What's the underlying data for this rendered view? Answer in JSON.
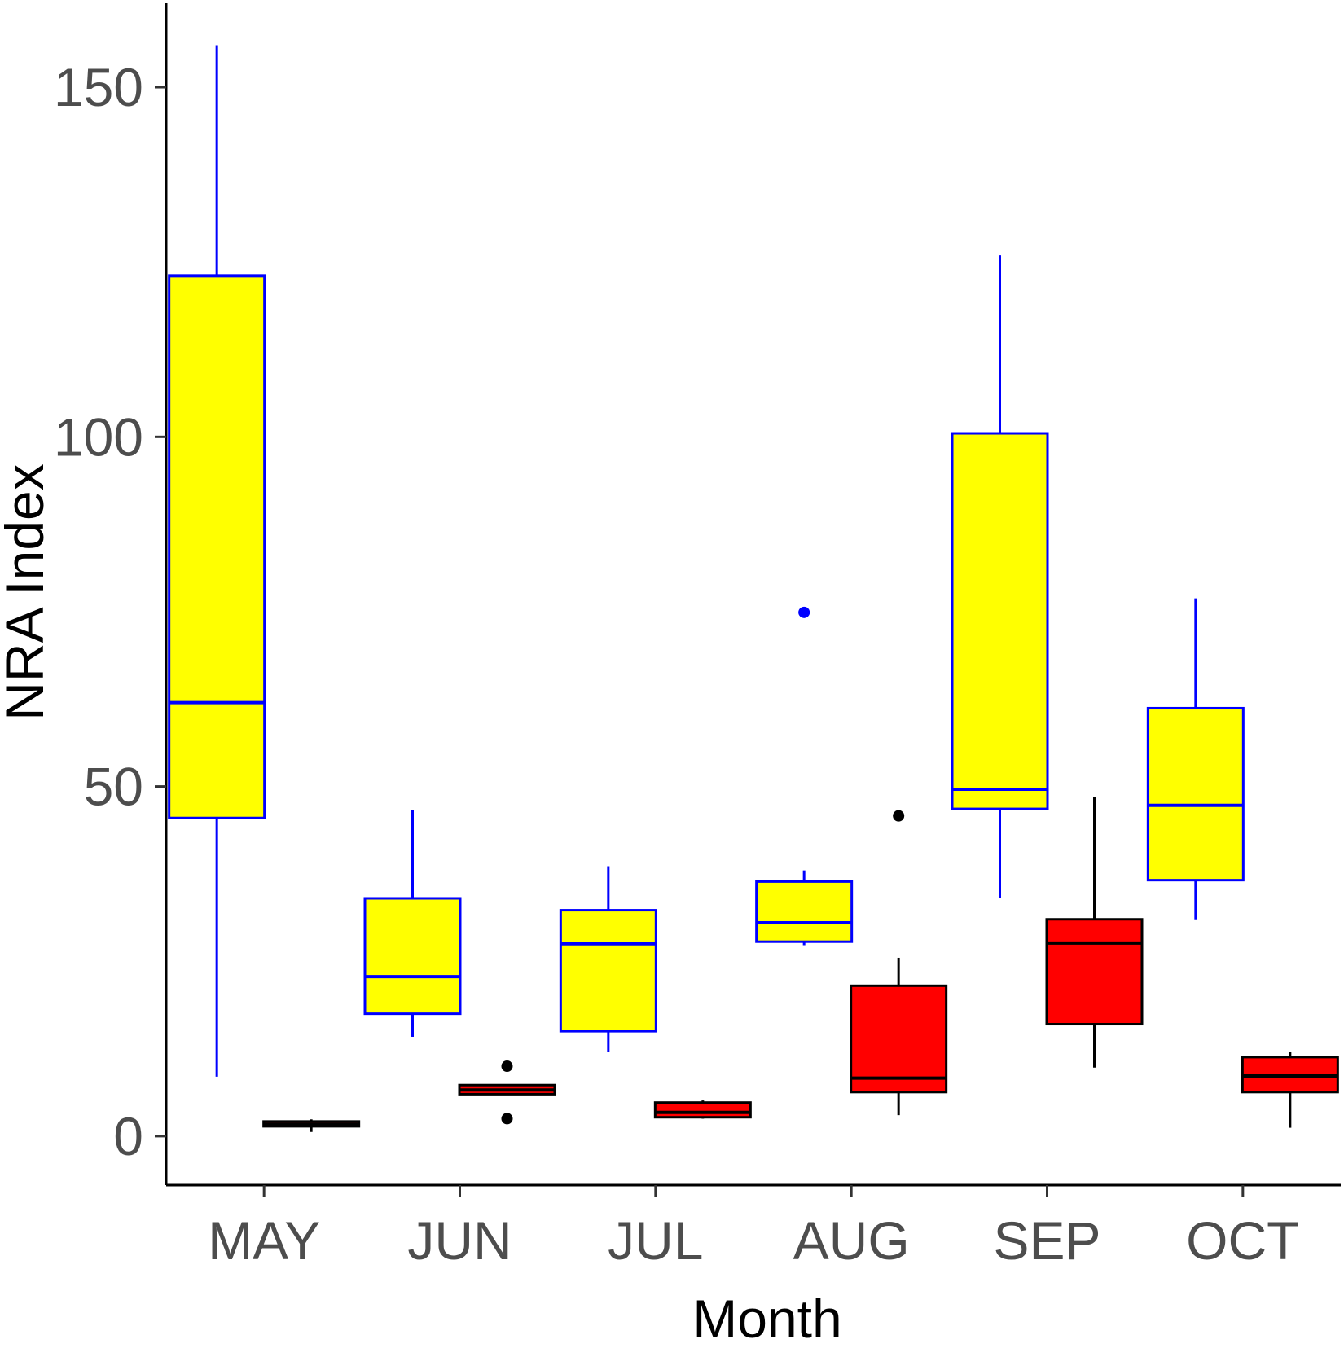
{
  "chart_data": {
    "type": "boxplot",
    "xlabel": "Month",
    "ylabel": "NRA Index",
    "categories": [
      "MAY",
      "JUN",
      "JUL",
      "AUG",
      "SEP",
      "OCT"
    ],
    "yticks": [
      0,
      50,
      100,
      150
    ],
    "ylim": [
      -7,
      162
    ],
    "grid": false,
    "legend": "none",
    "series": [
      {
        "fill": "#ffff00",
        "stroke": "#0000ff",
        "boxes": [
          {
            "lower_whisker": 8.5,
            "q1": 45.5,
            "median": 62,
            "q3": 123,
            "upper_whisker": 156,
            "outliers": []
          },
          {
            "lower_whisker": 14.2,
            "q1": 17.5,
            "median": 22.8,
            "q3": 34,
            "upper_whisker": 46.6,
            "outliers": []
          },
          {
            "lower_whisker": 12,
            "q1": 15,
            "median": 27.5,
            "q3": 32.3,
            "upper_whisker": 38.6,
            "outliers": []
          },
          {
            "lower_whisker": 27.3,
            "q1": 27.8,
            "median": 30.5,
            "q3": 36.4,
            "upper_whisker": 38,
            "outliers": [
              74.9
            ]
          },
          {
            "lower_whisker": 34,
            "q1": 46.8,
            "median": 49.6,
            "q3": 100.5,
            "upper_whisker": 126,
            "outliers": []
          },
          {
            "lower_whisker": 31,
            "q1": 36.6,
            "median": 47.3,
            "q3": 61.2,
            "upper_whisker": 76.9,
            "outliers": []
          }
        ]
      },
      {
        "fill": "#ff0000",
        "stroke": "#000000",
        "boxes": [
          {
            "lower_whisker": 0.6,
            "q1": 1.4,
            "median": 1.7,
            "q3": 2.1,
            "upper_whisker": 2.4,
            "outliers": []
          },
          {
            "lower_whisker": 5.9,
            "q1": 6.0,
            "median": 6.6,
            "q3": 7.3,
            "upper_whisker": 7.4,
            "outliers": [
              2.5,
              10
            ]
          },
          {
            "lower_whisker": 2.5,
            "q1": 2.7,
            "median": 3.4,
            "q3": 4.8,
            "upper_whisker": 5.1,
            "outliers": []
          },
          {
            "lower_whisker": 3,
            "q1": 6.3,
            "median": 8.3,
            "q3": 21.5,
            "upper_whisker": 25.5,
            "outliers": [
              45.8
            ]
          },
          {
            "lower_whisker": 9.8,
            "q1": 16,
            "median": 27.6,
            "q3": 31,
            "upper_whisker": 48.5,
            "outliers": []
          },
          {
            "lower_whisker": 1.2,
            "q1": 6.3,
            "median": 8.6,
            "q3": 11.3,
            "upper_whisker": 12,
            "outliers": []
          }
        ]
      }
    ]
  }
}
